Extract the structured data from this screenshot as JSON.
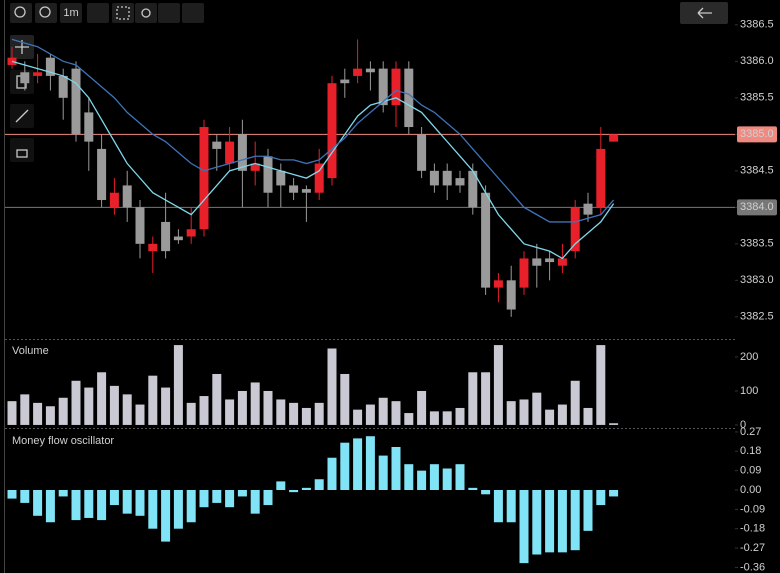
{
  "toolbar": {
    "interval": "1m"
  },
  "chart_data": [
    {
      "type": "candlestick",
      "open": [
        3385.95,
        3385.85,
        3385.8,
        3386.05,
        3385.8,
        3385.9,
        3385.3,
        3384.8,
        3384.0,
        3384.3,
        3384.0,
        3383.4,
        3383.8,
        3383.6,
        3383.6,
        3383.7,
        3384.9,
        3384.6,
        3385.0,
        3384.5,
        3384.7,
        3384.5,
        3384.3,
        3384.25,
        3384.2,
        3384.4,
        3385.75,
        3385.8,
        3385.9,
        3385.9,
        3385.4,
        3385.9,
        3385.0,
        3384.5,
        3384.5,
        3384.4,
        3384.5,
        3384.2,
        3382.9,
        3383.0,
        3382.9,
        3383.3,
        3383.3,
        3383.2,
        3383.4,
        3384.05,
        3384.0,
        3384.9
      ],
      "high": [
        3386.2,
        3386.0,
        3386.1,
        3386.1,
        3385.9,
        3386.0,
        3385.5,
        3385.0,
        3384.4,
        3384.5,
        3384.1,
        3383.6,
        3384.2,
        3383.7,
        3384.0,
        3385.2,
        3385.0,
        3385.1,
        3385.2,
        3384.9,
        3384.8,
        3384.6,
        3384.4,
        3384.3,
        3384.8,
        3385.8,
        3385.9,
        3386.3,
        3386.0,
        3386.0,
        3386.0,
        3386.0,
        3385.1,
        3384.6,
        3384.6,
        3384.5,
        3384.6,
        3384.3,
        3383.1,
        3383.2,
        3383.4,
        3383.5,
        3383.4,
        3383.5,
        3384.1,
        3384.2,
        3385.1,
        3385.0
      ],
      "low": [
        3385.9,
        3385.6,
        3385.7,
        3385.6,
        3385.2,
        3384.9,
        3384.5,
        3384.0,
        3383.9,
        3383.8,
        3383.3,
        3383.1,
        3383.3,
        3383.5,
        3383.5,
        3383.6,
        3384.5,
        3384.5,
        3384.0,
        3384.3,
        3384.0,
        3384.0,
        3384.1,
        3383.8,
        3384.1,
        3384.3,
        3385.5,
        3385.7,
        3385.6,
        3385.3,
        3385.1,
        3385.0,
        3384.4,
        3384.2,
        3384.1,
        3384.2,
        3383.9,
        3382.8,
        3382.7,
        3382.5,
        3382.8,
        3382.9,
        3383.0,
        3383.1,
        3383.3,
        3383.8,
        3383.9,
        3384.9
      ],
      "close": [
        3386.05,
        3385.7,
        3385.85,
        3385.8,
        3385.5,
        3385.0,
        3384.9,
        3384.1,
        3384.2,
        3384.0,
        3383.5,
        3383.5,
        3383.4,
        3383.55,
        3383.7,
        3385.1,
        3384.8,
        3384.9,
        3384.5,
        3384.6,
        3384.2,
        3384.3,
        3384.2,
        3384.2,
        3384.6,
        3385.7,
        3385.7,
        3385.9,
        3385.85,
        3385.4,
        3385.9,
        3385.1,
        3384.5,
        3384.3,
        3384.3,
        3384.3,
        3384.0,
        3382.9,
        3383.0,
        3382.6,
        3383.3,
        3383.2,
        3383.25,
        3383.3,
        3384.0,
        3383.9,
        3384.8,
        3385.0
      ],
      "up_color": "#e8202a",
      "down_color": "#9a9a9a",
      "series": [
        {
          "color": "#7fd8ea",
          "values": [
            3386.0,
            3385.95,
            3385.9,
            3385.85,
            3385.8,
            3385.7,
            3385.5,
            3385.2,
            3384.9,
            3384.6,
            3384.4,
            3384.2,
            3384.1,
            3384.0,
            3383.9,
            3384.1,
            3384.3,
            3384.5,
            3384.55,
            3384.6,
            3384.55,
            3384.5,
            3384.45,
            3384.4,
            3384.5,
            3384.75,
            3385.0,
            3385.25,
            3385.4,
            3385.45,
            3385.5,
            3385.4,
            3385.3,
            3385.1,
            3384.9,
            3384.7,
            3384.5,
            3384.2,
            3383.9,
            3383.7,
            3383.5,
            3383.45,
            3383.4,
            3383.3,
            3383.5,
            3383.65,
            3383.8,
            3384.05
          ]
        },
        {
          "color": "#3f73b8",
          "values": [
            3386.3,
            3386.25,
            3386.2,
            3386.1,
            3386.0,
            3385.95,
            3385.8,
            3385.65,
            3385.5,
            3385.3,
            3385.15,
            3385.0,
            3384.9,
            3384.75,
            3384.6,
            3384.5,
            3384.55,
            3384.6,
            3384.65,
            3384.7,
            3384.7,
            3384.65,
            3384.65,
            3384.6,
            3384.65,
            3384.8,
            3384.95,
            3385.15,
            3385.3,
            3385.45,
            3385.6,
            3385.55,
            3385.4,
            3385.3,
            3385.15,
            3385.0,
            3384.8,
            3384.6,
            3384.4,
            3384.2,
            3384.0,
            3383.9,
            3383.8,
            3383.8,
            3383.8,
            3383.85,
            3383.9,
            3384.1
          ]
        }
      ],
      "ylim": [
        3382.21,
        3386.84
      ],
      "yticks": [
        3386.5,
        {
          "value": 3386,
          "label": "3386.0"
        },
        3385.5,
        {
          "value": 3385,
          "label": "3385.0"
        },
        3384.5,
        {
          "value": 3384,
          "label": "3384.0"
        },
        3383.5,
        {
          "value": 3383,
          "label": "3383.0"
        },
        3382.5
      ],
      "hlines": [
        {
          "value": 3385,
          "label": "3385.0",
          "color": "#f08a80"
        },
        {
          "value": 3384,
          "label": "3384.0",
          "color": "#777777"
        }
      ]
    },
    {
      "type": "bar",
      "title": "Volume",
      "color": "#c9c9d3",
      "values": [
        70,
        90,
        65,
        55,
        80,
        130,
        110,
        155,
        115,
        90,
        60,
        145,
        110,
        235,
        65,
        85,
        150,
        75,
        100,
        125,
        100,
        75,
        65,
        50,
        65,
        225,
        150,
        45,
        60,
        80,
        70,
        35,
        100,
        40,
        40,
        50,
        155,
        155,
        235,
        70,
        75,
        95,
        45,
        60,
        130,
        50,
        235,
        5
      ],
      "ylim": [
        -9,
        250
      ],
      "yticks": [
        200,
        100,
        0
      ]
    },
    {
      "type": "bar",
      "title": "Money flow oscillator",
      "color": "#80e4f6",
      "values": [
        -0.04,
        -0.06,
        -0.12,
        -0.15,
        -0.03,
        -0.14,
        -0.13,
        -0.14,
        -0.07,
        -0.11,
        -0.12,
        -0.18,
        -0.24,
        -0.18,
        -0.15,
        -0.08,
        -0.06,
        -0.08,
        -0.03,
        -0.11,
        -0.07,
        0.04,
        -0.01,
        0.01,
        0.05,
        0.15,
        0.22,
        0.24,
        0.25,
        0.16,
        0.2,
        0.12,
        0.09,
        0.12,
        0.1,
        0.12,
        0.01,
        -0.02,
        -0.15,
        -0.15,
        -0.34,
        -0.3,
        -0.29,
        -0.29,
        -0.28,
        -0.19,
        -0.07,
        -0.03
      ],
      "ylim": [
        -0.386,
        0.279
      ],
      "yticks": [
        0.27,
        0.18,
        0.09,
        {
          "value": 0,
          "label": "0.00"
        },
        -0.09,
        -0.18,
        -0.27,
        -0.36
      ]
    }
  ]
}
